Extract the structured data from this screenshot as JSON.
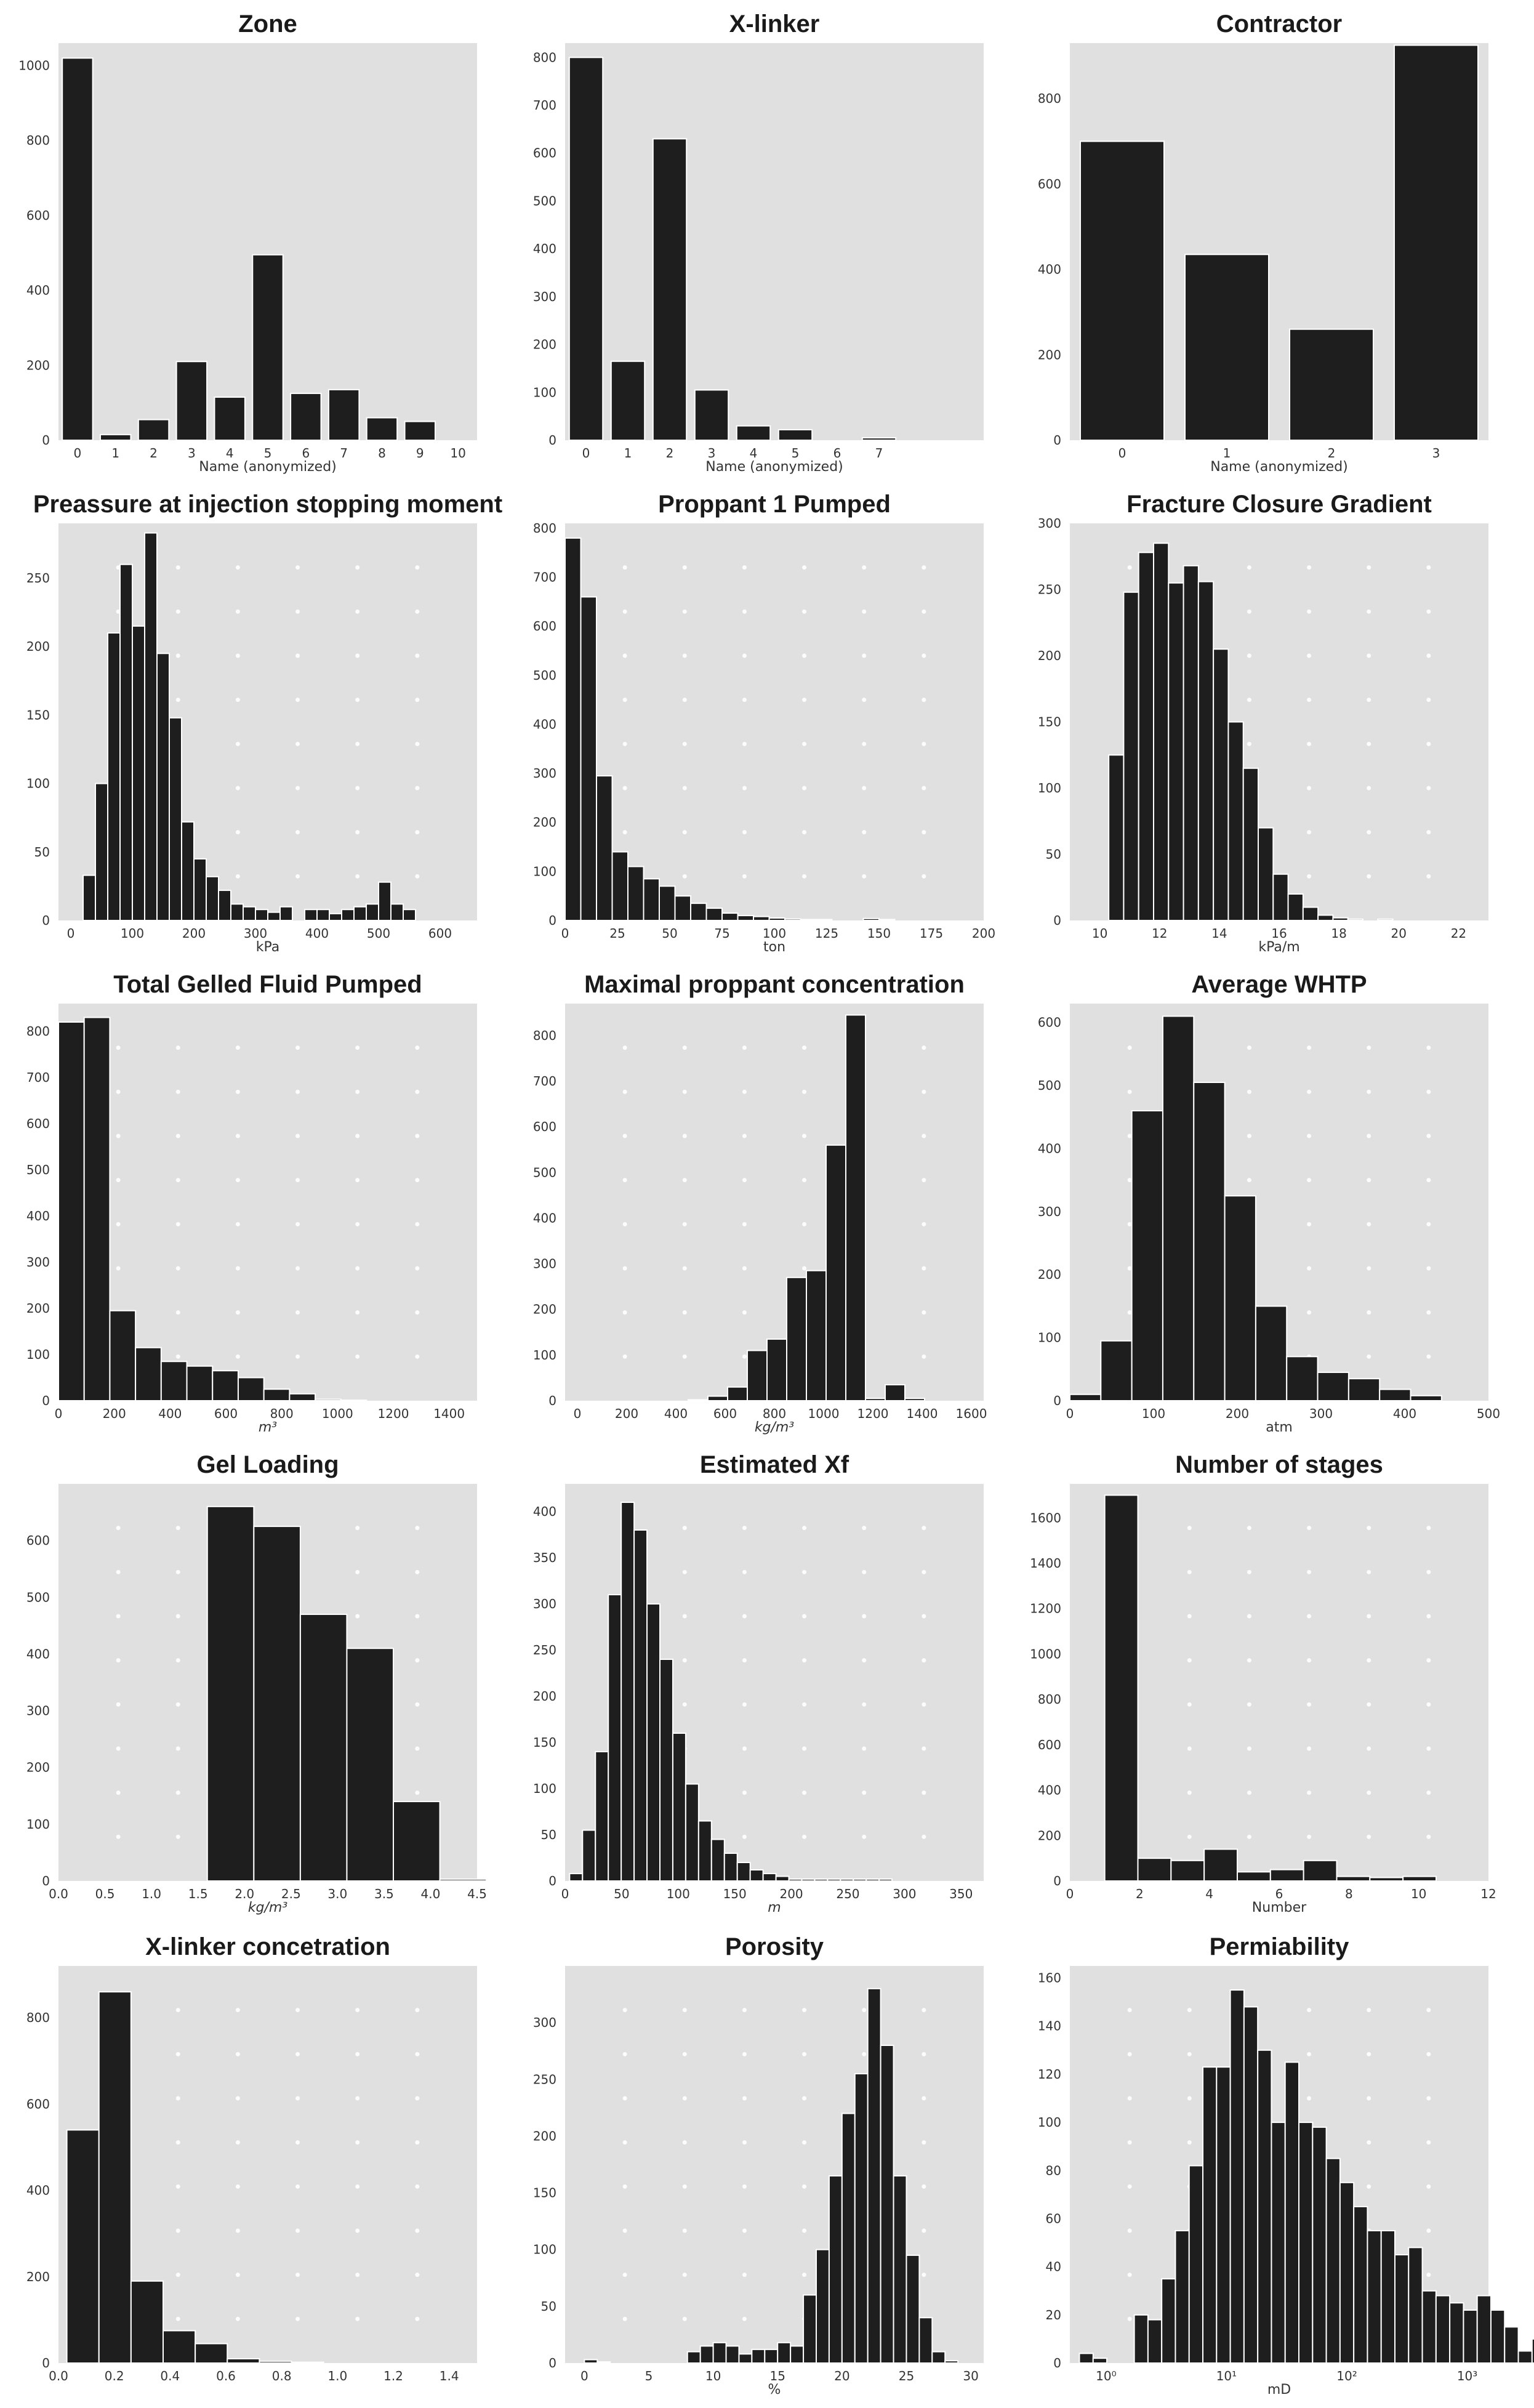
{
  "style": {
    "panel_background": "#e0e0e0",
    "bar_fill": "#1e1e1e",
    "bar_edge": "#ffffff",
    "grid_dot": "#ffffff",
    "text": "#1a1a1a"
  },
  "chart_data": [
    {
      "type": "bar",
      "title": "Zone",
      "xlabel": "Name (anonymized)",
      "ylabel": "",
      "xlim": [
        -0.5,
        10.5
      ],
      "ylim": [
        0,
        1060
      ],
      "xticks": [
        0,
        1,
        2,
        3,
        4,
        5,
        6,
        7,
        8,
        9,
        10
      ],
      "yticks": [
        0,
        200,
        400,
        600,
        800,
        1000
      ],
      "bars": [
        [
          0,
          1020
        ],
        [
          1,
          15
        ],
        [
          2,
          55
        ],
        [
          3,
          210
        ],
        [
          4,
          115
        ],
        [
          5,
          495
        ],
        [
          6,
          125
        ],
        [
          7,
          135
        ],
        [
          8,
          60
        ],
        [
          9,
          50
        ],
        [
          10,
          0
        ]
      ],
      "bar_width": 0.8,
      "grid": false
    },
    {
      "type": "bar",
      "title": "X-linker",
      "xlabel": "Name (anonymized)",
      "ylabel": "",
      "xlim": [
        -0.5,
        9.5
      ],
      "ylim": [
        0,
        830
      ],
      "xticks": [
        0,
        1,
        2,
        3,
        4,
        5,
        6,
        7
      ],
      "yticks": [
        0,
        100,
        200,
        300,
        400,
        500,
        600,
        700,
        800
      ],
      "bars": [
        [
          0,
          800
        ],
        [
          1,
          165
        ],
        [
          2,
          630
        ],
        [
          3,
          105
        ],
        [
          4,
          30
        ],
        [
          5,
          22
        ],
        [
          6,
          0
        ],
        [
          7,
          5
        ]
      ],
      "bar_width": 0.8,
      "grid": false
    },
    {
      "type": "bar",
      "title": "Contractor",
      "xlabel": "Name (anonymized)",
      "ylabel": "",
      "xlim": [
        -0.5,
        3.5
      ],
      "ylim": [
        0,
        930
      ],
      "xticks": [
        0,
        1,
        2,
        3
      ],
      "yticks": [
        0,
        200,
        400,
        600,
        800
      ],
      "ytick_labels": [
        "0",
        "200",
        "400",
        "600",
        "800"
      ],
      "bars": [
        [
          0,
          700
        ],
        [
          1,
          435
        ],
        [
          2,
          260
        ],
        [
          3,
          925
        ]
      ],
      "bar_width": 0.8,
      "grid": false
    },
    {
      "type": "histogram",
      "title": "Preassure at injection stopping moment",
      "xlabel": "kPa",
      "ylabel": "",
      "xlim": [
        -20,
        660
      ],
      "ylim": [
        0,
        290
      ],
      "xticks": [
        0,
        100,
        200,
        300,
        400,
        500,
        600
      ],
      "yticks": [
        0,
        50,
        100,
        150,
        200,
        250
      ],
      "bin_start": 20,
      "bin_width": 20,
      "counts": [
        33,
        100,
        210,
        260,
        215,
        283,
        195,
        148,
        72,
        45,
        32,
        22,
        12,
        10,
        8,
        6,
        10,
        0,
        8,
        8,
        5,
        8,
        10,
        12,
        28,
        12,
        8
      ],
      "grid": true
    },
    {
      "type": "histogram",
      "title": "Proppant 1 Pumped",
      "xlabel": "ton",
      "ylabel": "",
      "xlim": [
        0,
        200
      ],
      "ylim": [
        0,
        810
      ],
      "xticks": [
        0,
        25,
        50,
        75,
        100,
        125,
        150,
        175,
        200
      ],
      "yticks": [
        0,
        100,
        200,
        300,
        400,
        500,
        600,
        700,
        800
      ],
      "bin_start": 0,
      "bin_width": 7.5,
      "counts": [
        780,
        660,
        295,
        140,
        110,
        85,
        70,
        50,
        35,
        25,
        15,
        10,
        8,
        5,
        3,
        2,
        2,
        0,
        0,
        4,
        2
      ],
      "grid": true
    },
    {
      "type": "histogram",
      "title": "Fracture Closure Gradient",
      "xlabel": "kPa/m",
      "ylabel": "",
      "xlim": [
        9,
        23
      ],
      "ylim": [
        0,
        300
      ],
      "xticks": [
        10,
        12,
        14,
        16,
        18,
        20,
        22
      ],
      "yticks": [
        0,
        50,
        100,
        150,
        200,
        250,
        300
      ],
      "bin_start": 10.3,
      "bin_width": 0.5,
      "counts": [
        125,
        248,
        278,
        285,
        255,
        268,
        256,
        205,
        150,
        115,
        70,
        35,
        20,
        10,
        4,
        2,
        1,
        0,
        1,
        0,
        0,
        0
      ],
      "grid": true
    },
    {
      "type": "histogram",
      "title": "Total Gelled Fluid Pumped",
      "xlabel": "m³",
      "ylabel": "",
      "xlim": [
        0,
        1500
      ],
      "ylim": [
        0,
        860
      ],
      "xticks": [
        0,
        200,
        400,
        600,
        800,
        1000,
        1200,
        1400
      ],
      "yticks": [
        0,
        100,
        200,
        300,
        400,
        500,
        600,
        700,
        800
      ],
      "bin_start": 0,
      "bin_width": 92,
      "counts": [
        820,
        830,
        195,
        115,
        85,
        75,
        65,
        50,
        25,
        15,
        3,
        1,
        0,
        0,
        0,
        0
      ],
      "grid": true
    },
    {
      "type": "histogram",
      "title": "Maximal proppant concentration",
      "xlabel": "kg/m³",
      "ylabel": "",
      "xlim": [
        -50,
        1650
      ],
      "ylim": [
        0,
        870
      ],
      "xticks": [
        0,
        200,
        400,
        600,
        800,
        1000,
        1200,
        1400,
        1600
      ],
      "yticks": [
        0,
        100,
        200,
        300,
        400,
        500,
        600,
        700,
        800
      ],
      "bin_start": 450,
      "bin_width": 80,
      "counts": [
        2,
        10,
        30,
        110,
        135,
        270,
        285,
        560,
        845,
        5,
        35,
        5
      ],
      "grid": true
    },
    {
      "type": "histogram",
      "title": "Average WHTP",
      "xlabel": "atm",
      "ylabel": "",
      "xlim": [
        0,
        500
      ],
      "ylim": [
        0,
        630
      ],
      "xticks": [
        0,
        100,
        200,
        300,
        400,
        500
      ],
      "yticks": [
        0,
        100,
        200,
        300,
        400,
        500,
        600
      ],
      "bin_start": 0,
      "bin_width": 37,
      "counts": [
        10,
        95,
        460,
        610,
        505,
        325,
        150,
        70,
        45,
        35,
        18,
        8
      ],
      "grid": true
    },
    {
      "type": "histogram",
      "title": "Gel Loading",
      "xlabel": "kg/m³",
      "ylabel": "",
      "xlim": [
        0,
        4.5
      ],
      "ylim": [
        0,
        700
      ],
      "xticks": [
        0.0,
        0.5,
        1.0,
        1.5,
        2.0,
        2.5,
        3.0,
        3.5,
        4.0,
        4.5
      ],
      "xtick_labels": [
        "0.0",
        "0.5",
        "1.0",
        "1.5",
        "2.0",
        "2.5",
        "3.0",
        "3.5",
        "4.0",
        "4.5"
      ],
      "yticks": [
        0,
        100,
        200,
        300,
        400,
        500,
        600
      ],
      "bin_start": 1.6,
      "bin_width": 0.5,
      "counts": [
        660,
        625,
        470,
        410,
        140,
        3
      ],
      "grid": true
    },
    {
      "type": "histogram",
      "title": "Estimated Xf",
      "xlabel": "m",
      "ylabel": "",
      "xlim": [
        0,
        370
      ],
      "ylim": [
        0,
        430
      ],
      "xticks": [
        0,
        50,
        100,
        150,
        200,
        250,
        300,
        350
      ],
      "yticks": [
        0,
        50,
        100,
        150,
        200,
        250,
        300,
        350,
        400
      ],
      "bin_start": 4,
      "bin_width": 11.4,
      "counts": [
        8,
        55,
        140,
        310,
        410,
        380,
        300,
        240,
        160,
        105,
        65,
        45,
        30,
        20,
        12,
        8,
        5,
        2,
        2,
        2,
        2,
        2,
        2,
        2,
        2
      ],
      "grid": true
    },
    {
      "type": "histogram",
      "title": "Number of stages",
      "xlabel": "Number",
      "ylabel": "",
      "xlim": [
        0,
        12
      ],
      "ylim": [
        0,
        1750
      ],
      "xticks": [
        0,
        2,
        4,
        6,
        8,
        10,
        12
      ],
      "yticks": [
        0,
        200,
        400,
        600,
        800,
        1000,
        1200,
        1400,
        1600
      ],
      "bin_start": 1,
      "bin_width": 0.95,
      "counts": [
        1700,
        100,
        90,
        140,
        40,
        50,
        90,
        20,
        15,
        20
      ],
      "grid": true
    },
    {
      "type": "histogram",
      "title": "X-linker concetration",
      "xlabel": "",
      "ylabel": "",
      "xlim": [
        0,
        1.5
      ],
      "ylim": [
        0,
        920
      ],
      "xticks": [
        0.0,
        0.2,
        0.4,
        0.6,
        0.8,
        1.0,
        1.2,
        1.4
      ],
      "xtick_labels": [
        "0.0",
        "0.2",
        "0.4",
        "0.6",
        "0.8",
        "1.0",
        "1.2",
        "1.4"
      ],
      "yticks": [
        0,
        200,
        400,
        600,
        800
      ],
      "bin_start": 0.03,
      "bin_width": 0.115,
      "counts": [
        540,
        860,
        190,
        75,
        45,
        10,
        4,
        2
      ],
      "grid": true
    },
    {
      "type": "histogram",
      "title": "Porosity",
      "xlabel": "%",
      "ylabel": "",
      "xlim": [
        -1.5,
        31
      ],
      "ylim": [
        0,
        350
      ],
      "xticks": [
        0,
        5,
        10,
        15,
        20,
        25,
        30
      ],
      "yticks": [
        0,
        50,
        100,
        150,
        200,
        250,
        300
      ],
      "bin_start": 0,
      "bin_width": 1,
      "counts": [
        3,
        1,
        0,
        0,
        0,
        0,
        0,
        0,
        10,
        15,
        18,
        15,
        8,
        12,
        12,
        18,
        15,
        60,
        100,
        165,
        220,
        255,
        330,
        280,
        165,
        95,
        40,
        10,
        2
      ],
      "grid": true
    },
    {
      "type": "histogram",
      "title": "Permiability",
      "xlabel": "mD",
      "ylabel": "",
      "xscale": "log",
      "xlim": [
        0.5,
        1500
      ],
      "ylim": [
        0,
        165
      ],
      "xticks": [
        1,
        10,
        100,
        1000
      ],
      "xtick_labels": [
        "10⁰",
        "10¹",
        "10²",
        "10³"
      ],
      "yticks": [
        0,
        20,
        40,
        60,
        80,
        100,
        120,
        140,
        160
      ],
      "bin_start": 0.6,
      "bin_ratio": 1.3,
      "counts": [
        4,
        2,
        0,
        0,
        20,
        18,
        35,
        55,
        82,
        123,
        123,
        155,
        148,
        130,
        100,
        125,
        100,
        98,
        85,
        75,
        65,
        55,
        55,
        45,
        48,
        30,
        28,
        25,
        22,
        28,
        22,
        15,
        5,
        10
      ],
      "grid": true
    }
  ]
}
